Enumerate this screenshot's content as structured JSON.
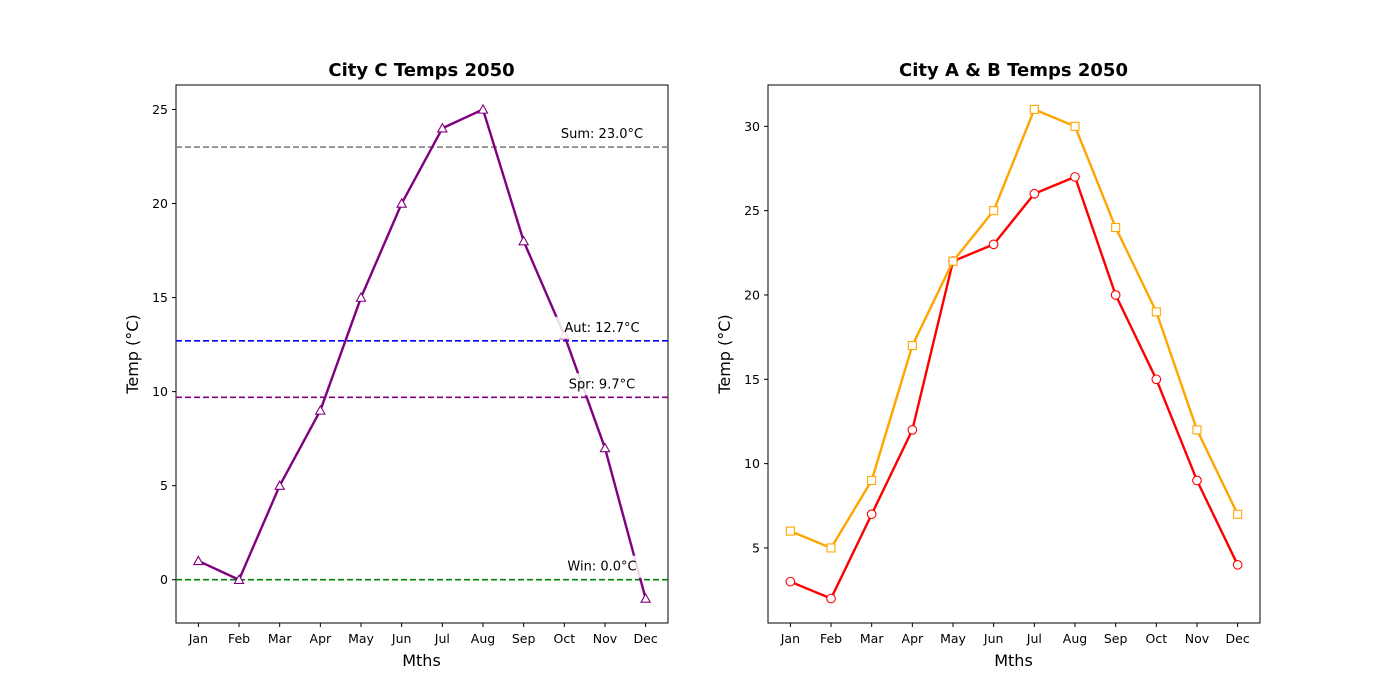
{
  "chart_data": [
    {
      "type": "line",
      "title": "City C Temps 2050",
      "xlabel": "Mths",
      "ylabel": "Temp (°C)",
      "categories": [
        "Jan",
        "Feb",
        "Mar",
        "Apr",
        "May",
        "Jun",
        "Jul",
        "Aug",
        "Sep",
        "Oct",
        "Nov",
        "Dec"
      ],
      "ylim": [
        -2.3,
        26.3
      ],
      "yticks": [
        0,
        5,
        10,
        15,
        20,
        25
      ],
      "grid": false,
      "series": [
        {
          "values": [
            1,
            0,
            5,
            9,
            15,
            20,
            24,
            25,
            18,
            13,
            7,
            -1
          ],
          "color": "#800080",
          "marker": "triangle"
        }
      ],
      "reference_lines": [
        {
          "label": "Sum: 23.0°C",
          "value": 23.0,
          "color": "#808080"
        },
        {
          "label": "Aut: 12.7°C",
          "value": 12.7,
          "color": "#0000ff"
        },
        {
          "label": "Spr: 9.7°C",
          "value": 9.7,
          "color": "#800080"
        },
        {
          "label": "Win: 0.0°C",
          "value": 0.0,
          "color": "#008000"
        }
      ]
    },
    {
      "type": "line",
      "title": "City A & B Temps 2050",
      "xlabel": "Mths",
      "ylabel": "Temp (°C)",
      "categories": [
        "Jan",
        "Feb",
        "Mar",
        "Apr",
        "May",
        "Jun",
        "Jul",
        "Aug",
        "Sep",
        "Oct",
        "Nov",
        "Dec"
      ],
      "ylim": [
        0.55,
        32.45
      ],
      "yticks": [
        5,
        10,
        15,
        20,
        25,
        30
      ],
      "grid": false,
      "series": [
        {
          "values": [
            3,
            2,
            7,
            12,
            22,
            23,
            26,
            27,
            20,
            15,
            9,
            4
          ],
          "color": "#ff0000",
          "marker": "circle"
        },
        {
          "values": [
            6,
            5,
            9,
            17,
            22,
            25,
            31,
            30,
            24,
            19,
            12,
            7
          ],
          "color": "#ffa500",
          "marker": "square"
        }
      ]
    }
  ]
}
